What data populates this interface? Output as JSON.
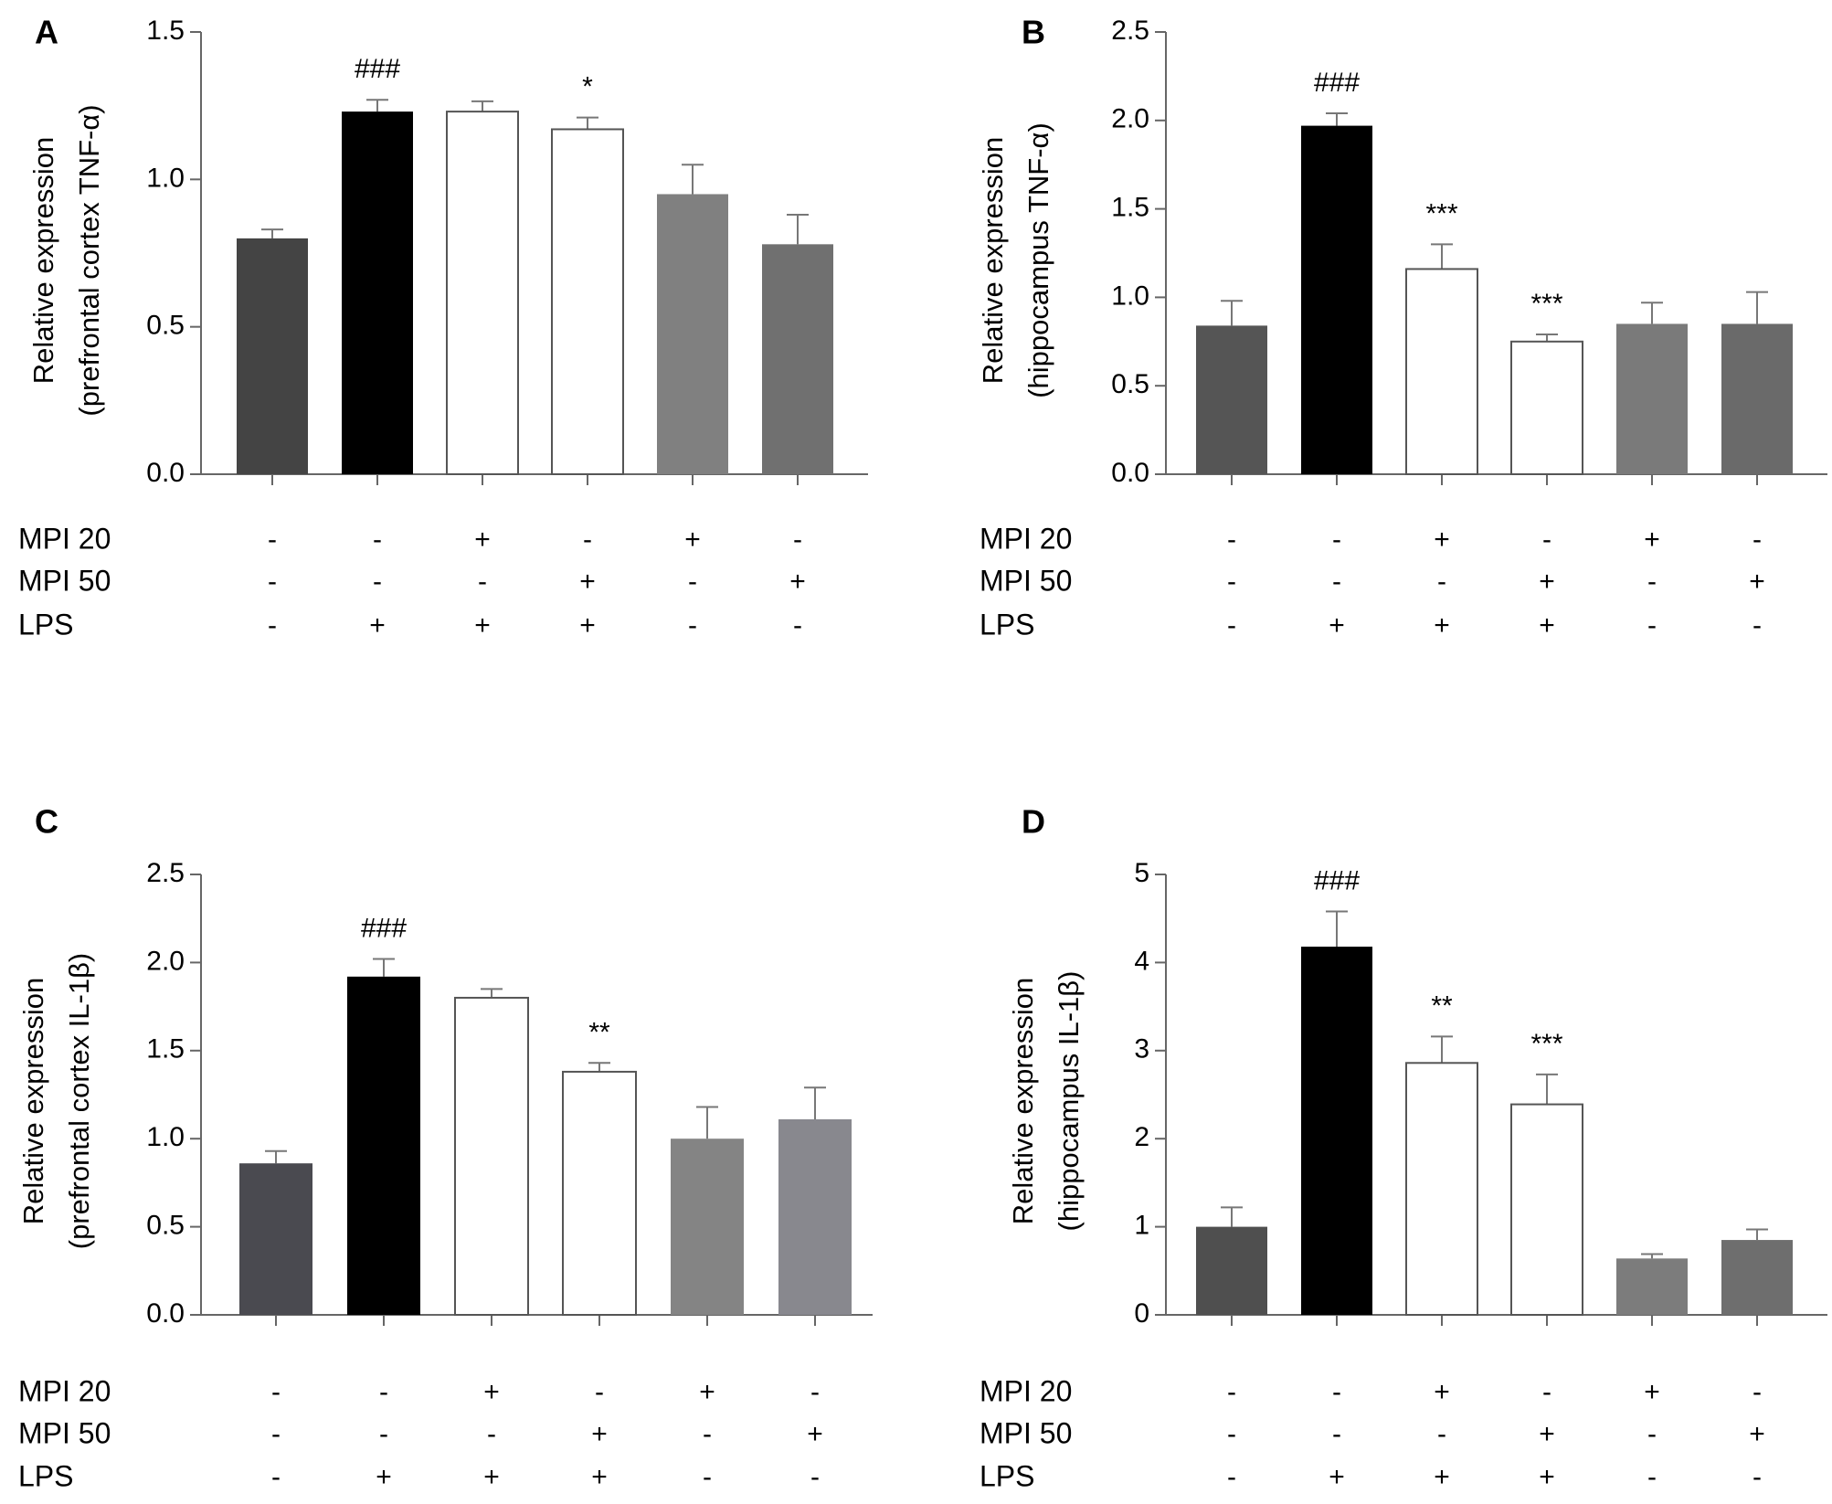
{
  "chart_data": [
    {
      "type": "bar",
      "panel": "A",
      "ylabel_line1": "Relative expression",
      "ylabel_line2": "(prefrontal cortex  TNF-α)",
      "ylim": [
        0,
        1.5
      ],
      "yticks": [
        "0.0",
        "0.5",
        "1.0",
        "1.5"
      ],
      "ytick_values": [
        0,
        0.5,
        1.0,
        1.5
      ],
      "values": [
        0.8,
        1.23,
        1.23,
        1.17,
        0.95,
        0.78
      ],
      "errors": [
        0.03,
        0.04,
        0.035,
        0.04,
        0.1,
        0.1
      ],
      "colors": [
        "#444444",
        "#000000",
        "#ffffff",
        "#ffffff",
        "#808080",
        "#707070"
      ],
      "annotations": [
        "",
        "###",
        "",
        "*",
        "",
        ""
      ],
      "treatments": [
        {
          "label": "MPI 20",
          "signs": [
            "-",
            "-",
            "+",
            "-",
            "+",
            "-"
          ]
        },
        {
          "label": "MPI 50",
          "signs": [
            "-",
            "-",
            "-",
            "+",
            "-",
            "+"
          ]
        },
        {
          "label": "LPS",
          "signs": [
            "-",
            "+",
            "+",
            "+",
            "-",
            "-"
          ]
        }
      ]
    },
    {
      "type": "bar",
      "panel": "B",
      "ylabel_line1": "Relative expression",
      "ylabel_line2": "(hippocampus TNF-α)",
      "ylim": [
        0,
        2.5
      ],
      "yticks": [
        "0.0",
        "0.5",
        "1.0",
        "1.5",
        "2.0",
        "2.5"
      ],
      "ytick_values": [
        0,
        0.5,
        1.0,
        1.5,
        2.0,
        2.5
      ],
      "values": [
        0.84,
        1.97,
        1.16,
        0.75,
        0.85,
        0.85
      ],
      "errors": [
        0.14,
        0.07,
        0.14,
        0.04,
        0.12,
        0.18
      ],
      "colors": [
        "#555555",
        "#000000",
        "#ffffff",
        "#ffffff",
        "#7a7a7a",
        "#6a6a6a"
      ],
      "annotations": [
        "",
        "###",
        "***",
        "***",
        "",
        ""
      ],
      "treatments": [
        {
          "label": "MPI 20",
          "signs": [
            "-",
            "-",
            "+",
            "-",
            "+",
            "-"
          ]
        },
        {
          "label": "MPI 50",
          "signs": [
            "-",
            "-",
            "-",
            "+",
            "-",
            "+"
          ]
        },
        {
          "label": "LPS",
          "signs": [
            "-",
            "+",
            "+",
            "+",
            "-",
            "-"
          ]
        }
      ]
    },
    {
      "type": "bar",
      "panel": "C",
      "ylabel_line1": "Relative expression",
      "ylabel_line2": "(prefrontal cortex IL-1β)",
      "ylim": [
        0,
        2.5
      ],
      "yticks": [
        "0.0",
        "0.5",
        "1.0",
        "1.5",
        "2.0",
        "2.5"
      ],
      "ytick_values": [
        0,
        0.5,
        1.0,
        1.5,
        2.0,
        2.5
      ],
      "values": [
        0.86,
        1.92,
        1.8,
        1.38,
        1.0,
        1.11
      ],
      "errors": [
        0.07,
        0.1,
        0.05,
        0.05,
        0.18,
        0.18
      ],
      "colors": [
        "#4a4a50",
        "#000000",
        "#ffffff",
        "#ffffff",
        "#848484",
        "#88888e"
      ],
      "annotations": [
        "",
        "###",
        "",
        "**",
        "",
        ""
      ],
      "treatments": [
        {
          "label": "MPI 20",
          "signs": [
            "-",
            "-",
            "+",
            "-",
            "+",
            "-"
          ]
        },
        {
          "label": "MPI 50",
          "signs": [
            "-",
            "-",
            "-",
            "+",
            "-",
            "+"
          ]
        },
        {
          "label": "LPS",
          "signs": [
            "-",
            "+",
            "+",
            "+",
            "-",
            "-"
          ]
        }
      ]
    },
    {
      "type": "bar",
      "panel": "D",
      "ylabel_line1": "Relative expression",
      "ylabel_line2": "(hippocampus  IL-1β)",
      "ylim": [
        0,
        5
      ],
      "yticks": [
        "0",
        "1",
        "2",
        "3",
        "4",
        "5"
      ],
      "ytick_values": [
        0,
        1,
        2,
        3,
        4,
        5
      ],
      "values": [
        1.0,
        4.18,
        2.86,
        2.39,
        0.64,
        0.85
      ],
      "errors": [
        0.22,
        0.4,
        0.3,
        0.34,
        0.05,
        0.12
      ],
      "colors": [
        "#4f4f4f",
        "#000000",
        "#ffffff",
        "#ffffff",
        "#7c7c7c",
        "#6e6e6e"
      ],
      "annotations": [
        "",
        "###",
        "**",
        "***",
        "",
        ""
      ],
      "treatments": [
        {
          "label": "MPI 20",
          "signs": [
            "-",
            "-",
            "+",
            "-",
            "+",
            "-"
          ]
        },
        {
          "label": "MPI 50",
          "signs": [
            "-",
            "-",
            "-",
            "+",
            "-",
            "+"
          ]
        },
        {
          "label": "LPS",
          "signs": [
            "-",
            "+",
            "+",
            "+",
            "-",
            "-"
          ]
        }
      ]
    }
  ]
}
